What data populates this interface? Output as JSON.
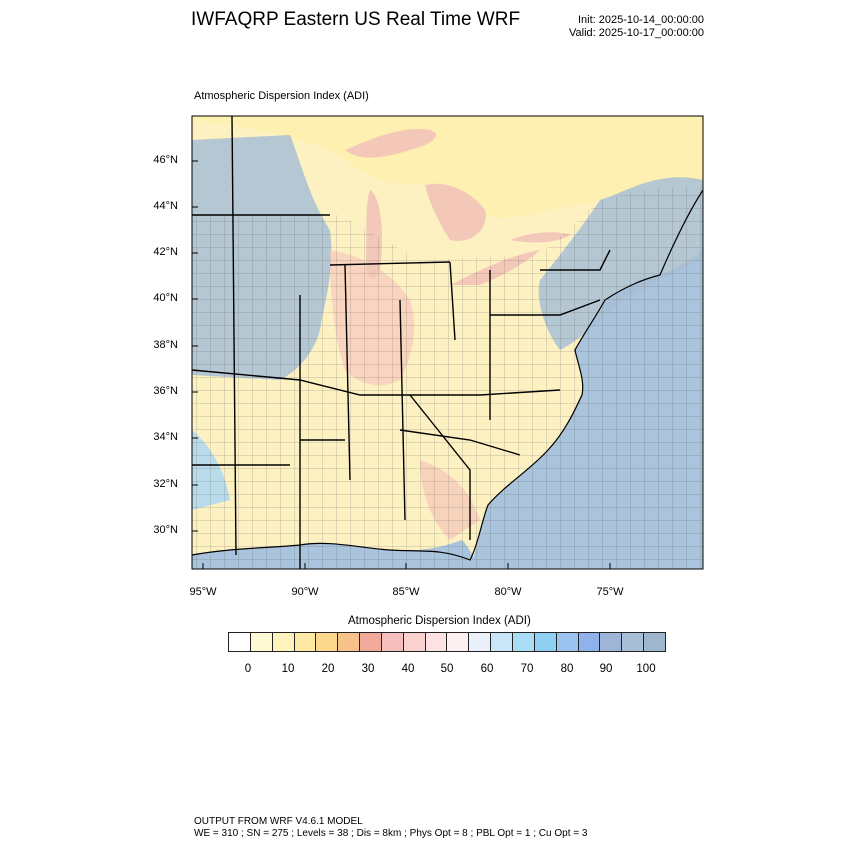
{
  "header": {
    "title": "IWFAQRP Eastern US Real Time WRF",
    "init": "Init: 2025-10-14_00:00:00",
    "valid": "Valid: 2025-10-17_00:00:00"
  },
  "plot": {
    "label": "Atmospheric Dispersion Index   (ADI)",
    "lat_labels": [
      "46°N",
      "44°N",
      "42°N",
      "40°N",
      "38°N",
      "36°N",
      "34°N",
      "32°N",
      "30°N"
    ],
    "lon_labels": [
      "95°W",
      "90°W",
      "85°W",
      "80°W",
      "75°W"
    ],
    "colors": {
      "ocean": "#a9c4dc",
      "lake": "#f4c8b8",
      "land_mixed": "#fdeeb8",
      "boundary": "#000000"
    }
  },
  "colorbar": {
    "title": "Atmospheric Dispersion Index  (ADI)",
    "tick_labels": [
      "0",
      "10",
      "20",
      "30",
      "40",
      "50",
      "60",
      "70",
      "80",
      "90",
      "100"
    ],
    "colors": [
      "#ffffff",
      "#fffad6",
      "#fff3bd",
      "#fde9a3",
      "#fbd88c",
      "#f7c28a",
      "#f1a99a",
      "#f5bfbd",
      "#f9d2d0",
      "#fce3e1",
      "#fdf0f0",
      "#e9f0fa",
      "#c8e6f8",
      "#a9dcf5",
      "#8ecff2",
      "#9cc2ef",
      "#8fb2ea",
      "#9eb5d8",
      "#a8bfd6",
      "#9fb6cf"
    ]
  },
  "footer": {
    "line1": "OUTPUT FROM WRF V4.6.1 MODEL",
    "line2": "WE = 310 ; SN = 275 ; Levels = 38 ; Dis = 8km ; Phys Opt = 8 ; PBL Opt = 1 ; Cu Opt = 3"
  }
}
